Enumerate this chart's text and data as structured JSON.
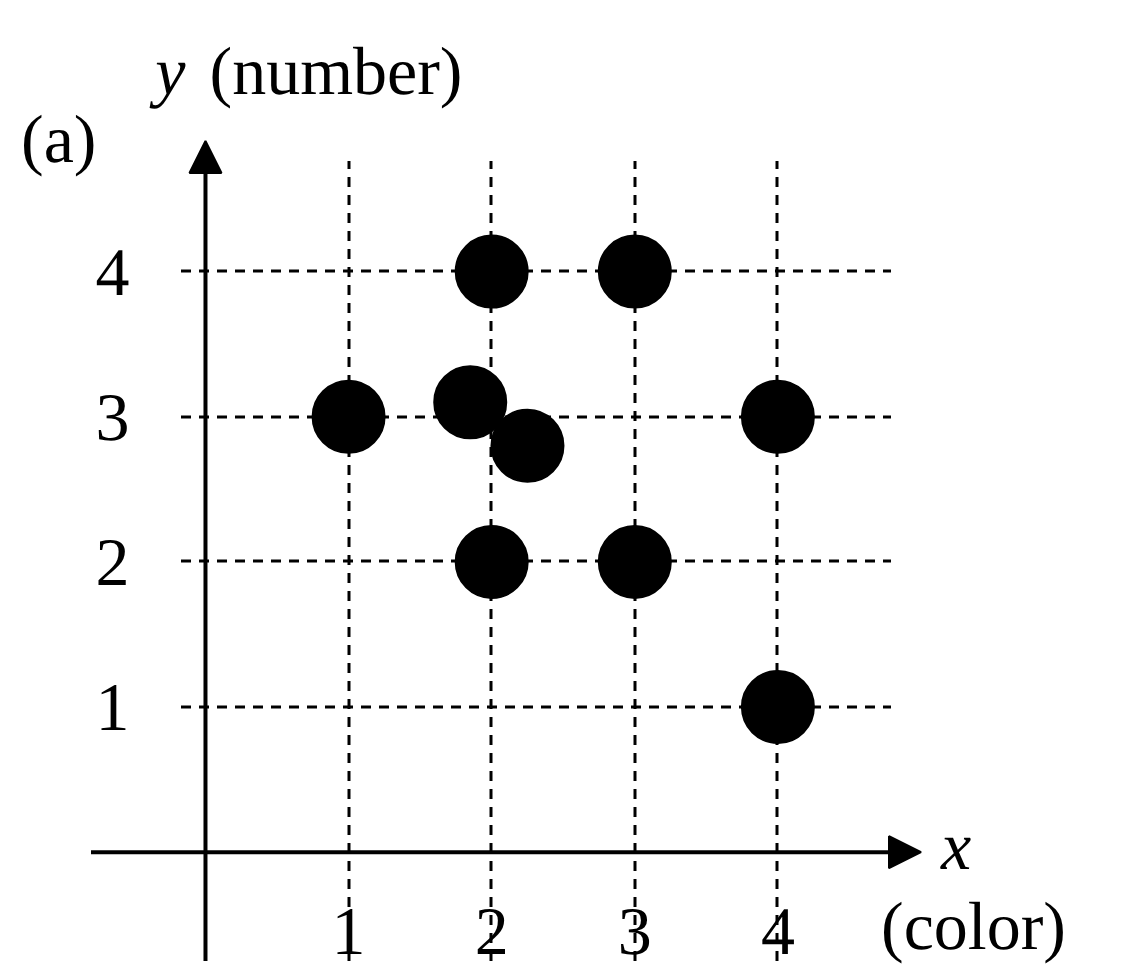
{
  "chart_data": {
    "type": "scatter",
    "annotations": [
      "(a)"
    ],
    "xlabel": "x (color)",
    "ylabel": "y (number)",
    "x": [
      1,
      1.85,
      2,
      2.25,
      2,
      3,
      3,
      4,
      4
    ],
    "values": [
      3,
      3.1,
      4,
      2.8,
      2,
      4,
      2,
      3,
      1
    ],
    "color": "#000000",
    "marker": "circle",
    "xlim": [
      -0.8,
      5.0
    ],
    "ylim": [
      -0.75,
      4.9
    ],
    "xticks": [
      1,
      2,
      3,
      4
    ],
    "yticks": [
      1,
      2,
      3,
      4
    ],
    "grid": true
  }
}
